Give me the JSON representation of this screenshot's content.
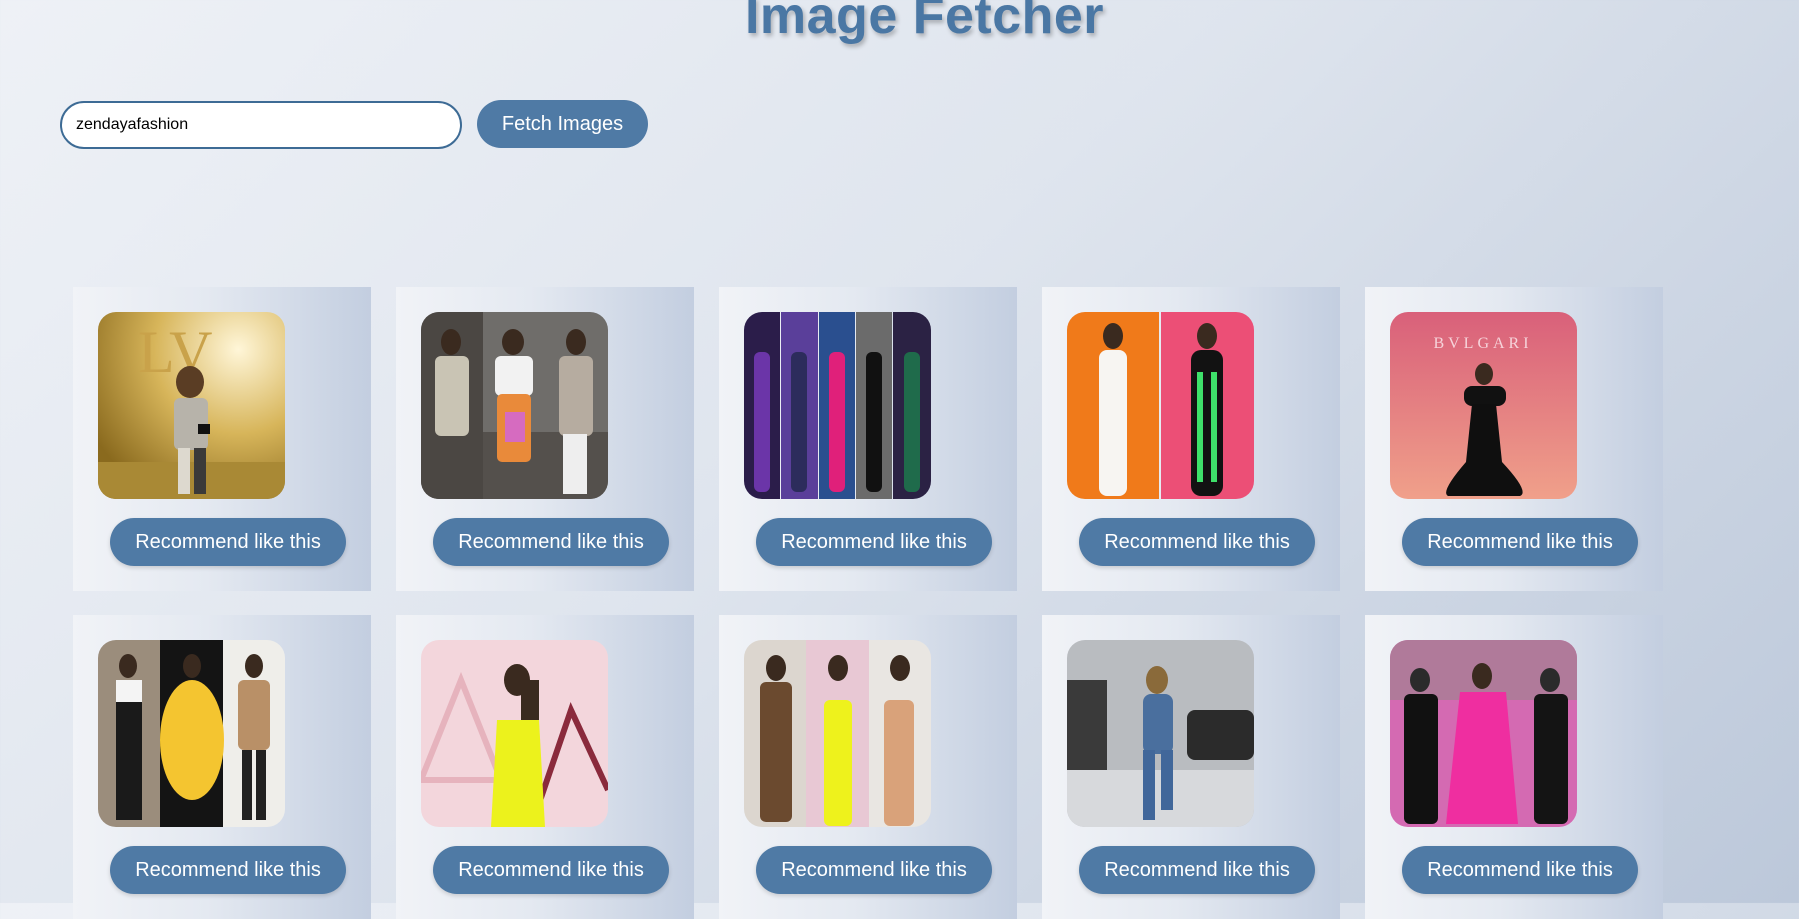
{
  "header": {
    "title": "Image Fetcher"
  },
  "search": {
    "value": "zendayafashion",
    "placeholder": ""
  },
  "fetch_button": {
    "label": "Fetch Images"
  },
  "cards": [
    {
      "button_label": "Recommend like this"
    },
    {
      "button_label": "Recommend like this"
    },
    {
      "button_label": "Recommend like this"
    },
    {
      "button_label": "Recommend like this"
    },
    {
      "button_label": "Recommend like this"
    },
    {
      "button_label": "Recommend like this"
    },
    {
      "button_label": "Recommend like this"
    },
    {
      "button_label": "Recommend like this"
    },
    {
      "button_label": "Recommend like this"
    },
    {
      "button_label": "Recommend like this"
    }
  ],
  "colors": {
    "accent": "#4f7aa5",
    "title": "#4a77a4",
    "input_border": "#3d6b95"
  }
}
